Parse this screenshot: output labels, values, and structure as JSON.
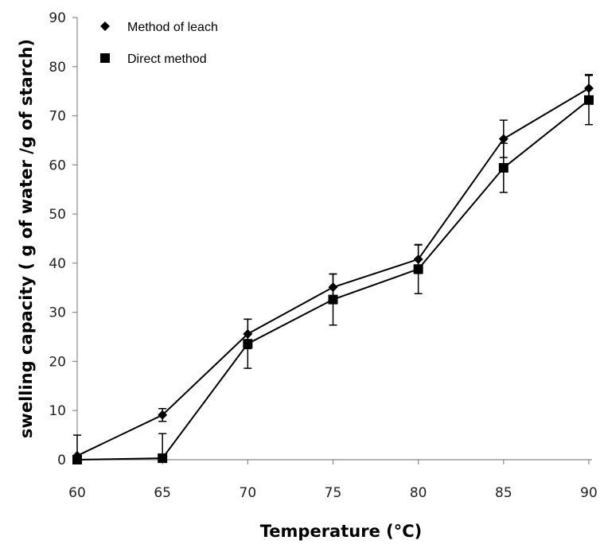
{
  "chart_data": {
    "type": "line",
    "title": "",
    "xlabel": "Temperature (°C)",
    "ylabel": "swelling capacity  ( g of water /g of starch)",
    "x": [
      60,
      65,
      70,
      75,
      80,
      85,
      90
    ],
    "xlim": [
      60,
      90
    ],
    "ylim": [
      0,
      90
    ],
    "x_ticks": [
      60,
      65,
      70,
      75,
      80,
      85,
      90
    ],
    "y_ticks": [
      0,
      10,
      20,
      30,
      40,
      50,
      60,
      70,
      80,
      90
    ],
    "grid": false,
    "legend_position": "top-left",
    "series": [
      {
        "name": "Method of leach",
        "marker": "diamond",
        "color": "#000000",
        "values": [
          0.8,
          9.1,
          25.6,
          35.1,
          40.8,
          65.3,
          75.6
        ],
        "error": [
          4.2,
          1.3,
          3.0,
          2.7,
          2.9,
          3.8,
          2.8
        ]
      },
      {
        "name": "Direct method",
        "marker": "square",
        "color": "#000000",
        "values": [
          0.0,
          0.3,
          23.6,
          32.6,
          38.8,
          59.4,
          73.2
        ],
        "error": [
          0.0,
          5.0,
          5.0,
          5.2,
          5.0,
          5.0,
          5.0
        ]
      }
    ]
  }
}
